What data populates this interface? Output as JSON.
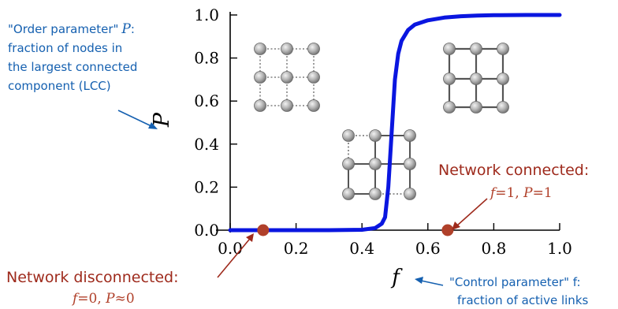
{
  "chart_data": {
    "type": "line",
    "xlabel": "f",
    "ylabel": "P",
    "xlim": [
      0.0,
      1.0
    ],
    "ylim": [
      0.0,
      1.0
    ],
    "x_ticks": [
      "0.0",
      "0.2",
      "0.4",
      "0.6",
      "0.8",
      "1.0"
    ],
    "y_ticks": [
      "0.0",
      "0.2",
      "0.4",
      "0.6",
      "0.8",
      "1.0"
    ],
    "grid": false,
    "series": [
      {
        "color": "#0a16e0",
        "x": [
          0.0,
          0.1,
          0.2,
          0.3,
          0.4,
          0.44,
          0.46,
          0.47,
          0.48,
          0.49,
          0.5,
          0.51,
          0.52,
          0.54,
          0.56,
          0.6,
          0.65,
          0.7,
          0.75,
          0.8,
          0.9,
          1.0
        ],
        "y": [
          0.0,
          0.0,
          0.0,
          0.0,
          0.002,
          0.01,
          0.03,
          0.06,
          0.2,
          0.45,
          0.7,
          0.82,
          0.88,
          0.93,
          0.955,
          0.975,
          0.988,
          0.994,
          0.997,
          0.999,
          1.0,
          1.0
        ]
      }
    ],
    "points": [
      {
        "x": 0.1,
        "y": 0.0,
        "color": "#b0402a"
      },
      {
        "x": 0.66,
        "y": 0.0,
        "color": "#b0402a"
      }
    ],
    "annotations": {
      "order_param": {
        "quote": "\"Order parameter\"",
        "symbol": "P",
        "colon": ":",
        "line2": "fraction of nodes in",
        "line3": "the largest connected",
        "line4": "component (LCC)",
        "color": "#1560b0"
      },
      "control_param": {
        "line1": "\"Control parameter\" f:",
        "line2": "fraction of active links",
        "color": "#1560b0"
      },
      "disconnected": {
        "title": "Network disconnected:",
        "f": "f",
        "eq1": "=0, ",
        "P": "P",
        "eq2": "≈0",
        "title_color": "#9e2a1c",
        "math_color": "#b0402a"
      },
      "connected": {
        "title": "Network connected:",
        "f": "f",
        "eq1": "=1, ",
        "P": "P",
        "eq2": "=1",
        "title_color": "#9e2a1c",
        "math_color": "#b0402a"
      }
    }
  }
}
